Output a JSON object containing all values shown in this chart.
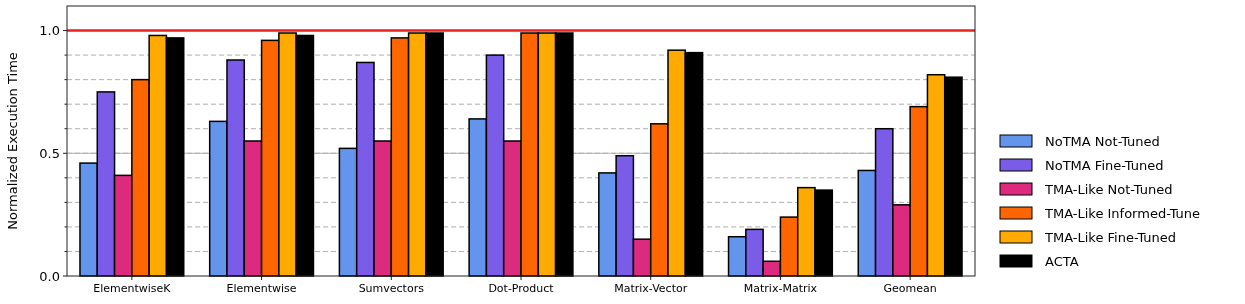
{
  "chart_data": {
    "type": "bar",
    "ylabel": "Normalized Execution Time",
    "categories": [
      "ElementwiseK",
      "Elementwise",
      "Sumvectors",
      "Dot-Product",
      "Matrix-Vector",
      "Matrix-Matrix",
      "Geomean"
    ],
    "series": [
      {
        "name": "NoTMA Not-Tuned",
        "color": "#6495ed",
        "values": [
          0.46,
          0.63,
          0.52,
          0.64,
          0.42,
          0.16,
          0.43
        ]
      },
      {
        "name": "NoTMA Fine-Tuned",
        "color": "#7b5ce9",
        "values": [
          0.75,
          0.88,
          0.87,
          0.9,
          0.49,
          0.19,
          0.6
        ]
      },
      {
        "name": "TMA-Like Not-Tuned",
        "color": "#dc2b7f",
        "values": [
          0.41,
          0.55,
          0.55,
          0.55,
          0.15,
          0.06,
          0.29
        ]
      },
      {
        "name": "TMA-Like Informed-Tune",
        "color": "#ff6600",
        "values": [
          0.8,
          0.96,
          0.97,
          0.99,
          0.62,
          0.24,
          0.69
        ]
      },
      {
        "name": "TMA-Like Fine-Tuned",
        "color": "#ffaa00",
        "values": [
          0.98,
          0.99,
          0.99,
          0.99,
          0.92,
          0.36,
          0.82
        ]
      },
      {
        "name": "ACTA",
        "color": "#000000",
        "values": [
          0.97,
          0.98,
          0.99,
          0.99,
          0.91,
          0.35,
          0.81
        ]
      }
    ],
    "ylim": [
      0,
      1.1
    ],
    "yticks": [
      {
        "value": 0,
        "label": "0.0"
      },
      {
        "value": 0.1,
        "label": null
      },
      {
        "value": 0.2,
        "label": null
      },
      {
        "value": 0.3,
        "label": null
      },
      {
        "value": 0.4,
        "label": null
      },
      {
        "value": 0.5,
        "label": "0.5"
      },
      {
        "value": 0.6,
        "label": null
      },
      {
        "value": 0.7,
        "label": null
      },
      {
        "value": 0.8,
        "label": null
      },
      {
        "value": 0.9,
        "label": null
      },
      {
        "value": 1.0,
        "label": "1.0"
      }
    ],
    "grid": "y",
    "legend": "right",
    "ref_lines": [
      {
        "axis": "y",
        "value": 0.5,
        "color": "#b0b0b0"
      },
      {
        "axis": "y",
        "value": 1.0,
        "color": "#e8211c"
      }
    ]
  }
}
